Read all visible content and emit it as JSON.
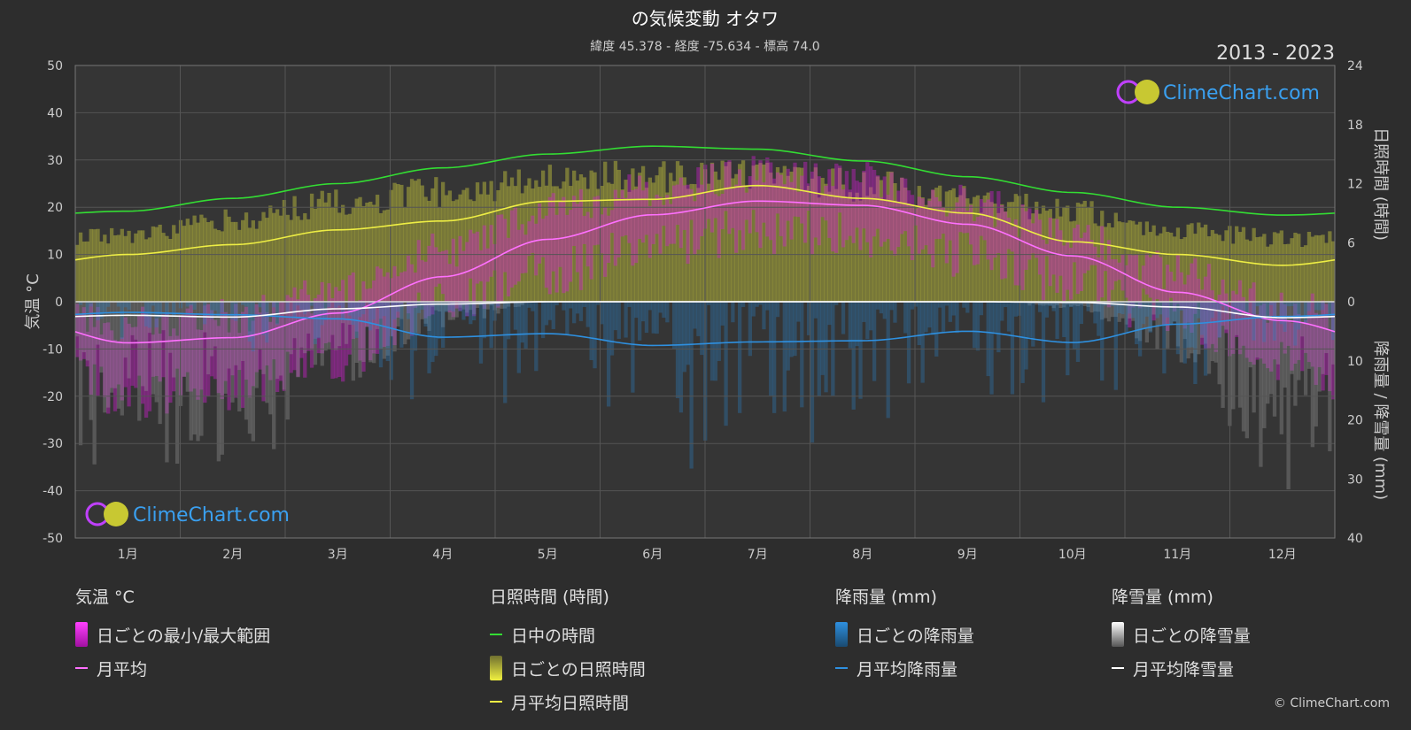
{
  "header": {
    "title": "の気候変動 オタワ",
    "subtitle": "緯度 45.378 - 経度 -75.634 - 標高 74.0",
    "year_range": "2013 - 2023"
  },
  "watermark": "ClimeChart.com",
  "copyright": "© ClimeChart.com",
  "colors": {
    "background": "#2d2d2d",
    "plot_background": "#353535",
    "grid": "#555555",
    "temp_range": "#d020d0",
    "temp_avg": "#ff70ff",
    "daylight": "#33dd33",
    "sunshine_daily": "#c8c83c",
    "sunshine_avg": "#eeee44",
    "rain_daily": "#2a7fc0",
    "rain_avg": "#2e90e0",
    "snow_daily": "#9a9a9a",
    "snow_avg": "#ffffff"
  },
  "legend": {
    "temp": {
      "title": "気温 °C",
      "range_label": "日ごとの最小/最大範囲",
      "avg_label": "月平均"
    },
    "sun": {
      "title": "日照時間 (時間)",
      "daylight_label": "日中の時間",
      "daily_label": "日ごとの日照時間",
      "avg_label": "月平均日照時間"
    },
    "rain": {
      "title": "降雨量 (mm)",
      "daily_label": "日ごとの降雨量",
      "avg_label": "月平均降雨量"
    },
    "snow": {
      "title": "降雪量 (mm)",
      "daily_label": "日ごとの降雪量",
      "avg_label": "月平均降雪量"
    }
  },
  "chart_data": {
    "type": "line",
    "categories": [
      "1月",
      "2月",
      "3月",
      "4月",
      "5月",
      "6月",
      "7月",
      "8月",
      "9月",
      "10月",
      "11月",
      "12月"
    ],
    "axes": {
      "left": {
        "label": "気温 °C",
        "range": [
          -50,
          50
        ],
        "ticks": [
          50,
          40,
          30,
          20,
          10,
          0,
          -10,
          -20,
          -30,
          -40,
          -50
        ]
      },
      "right_top": {
        "label": "日照時間 (時間)",
        "range": [
          0,
          24
        ],
        "ticks": [
          24,
          18,
          12,
          6,
          0
        ]
      },
      "right_bottom": {
        "label": "降雨量 / 降雪量 (mm)",
        "range": [
          0,
          40
        ],
        "ticks": [
          10,
          20,
          30,
          40
        ]
      }
    },
    "grid": true,
    "series": [
      {
        "name": "日中の時間",
        "axis": "hours",
        "values": [
          9.2,
          10.5,
          12.0,
          13.6,
          15.0,
          15.8,
          15.5,
          14.3,
          12.7,
          11.1,
          9.6,
          8.8
        ]
      },
      {
        "name": "月平均日照時間",
        "axis": "hours",
        "values": [
          4.8,
          5.8,
          7.3,
          8.2,
          10.2,
          10.4,
          11.8,
          10.5,
          9.0,
          6.1,
          4.8,
          3.7
        ]
      },
      {
        "name": "月平均",
        "axis": "temp",
        "values": [
          -8.7,
          -7.6,
          -2.4,
          5.3,
          13.2,
          18.4,
          21.3,
          20.4,
          16.4,
          9.7,
          2.0,
          -4.0
        ]
      },
      {
        "name": "月平均降雨量",
        "axis": "precip",
        "values": [
          1.8,
          2.2,
          2.9,
          6.0,
          5.4,
          7.4,
          6.8,
          6.6,
          5.0,
          6.9,
          3.8,
          2.5
        ]
      },
      {
        "name": "月平均降雪量",
        "axis": "precip",
        "values": [
          2.3,
          2.6,
          1.2,
          0.4,
          0.0,
          0.0,
          0.0,
          0.0,
          0.0,
          0.1,
          0.9,
          2.7
        ]
      }
    ],
    "daily_temp_range": {
      "max": [
        -5,
        -3,
        2,
        11,
        19,
        24,
        27,
        26,
        21,
        14,
        6,
        -1
      ],
      "min": [
        -20,
        -18,
        -12,
        -1,
        6,
        12,
        15,
        14,
        10,
        4,
        -4,
        -12
      ]
    },
    "daily_sunshine_envelope": [
      7.6,
      9.5,
      11.5,
      12.8,
      14.0,
      14.5,
      14.5,
      13.5,
      12.0,
      10.5,
      8.5,
      7.3
    ]
  }
}
